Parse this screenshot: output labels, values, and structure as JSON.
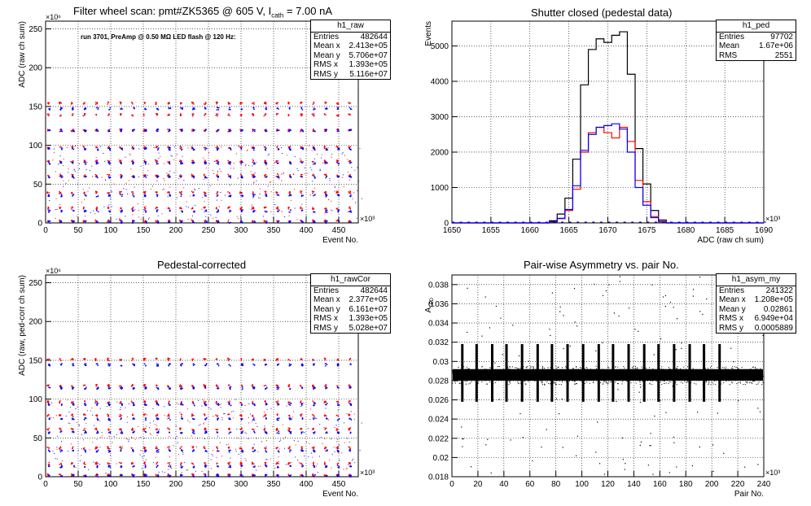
{
  "panels": [
    {
      "title_pre": "Filter wheel scan: pmt#ZK5365 @   605 V, I",
      "title_sub": "cath",
      "title_post": " = 7.00 nA",
      "subtitle": "run 3701, PreAmp @ 0.50 MΩ LED flash @  120 Hz:",
      "stats": {
        "name": "h1_raw",
        "rows": [
          [
            "Entries",
            "482644"
          ],
          [
            "Mean x",
            "2.413e+05"
          ],
          [
            "Mean y",
            "5.706e+07"
          ],
          [
            "RMS x",
            "1.393e+05"
          ],
          [
            "RMS y",
            "5.116e+07"
          ]
        ]
      }
    },
    {
      "title": "Shutter closed (pedestal data)",
      "stats": {
        "name": "h1_ped",
        "rows": [
          [
            "Entries",
            "97702"
          ],
          [
            "Mean",
            "1.67e+06"
          ],
          [
            "RMS",
            "2551"
          ]
        ]
      }
    },
    {
      "title": "Pedestal-corrected",
      "stats": {
        "name": "h1_rawCor",
        "rows": [
          [
            "Entries",
            "482644"
          ],
          [
            "Mean x",
            "2.377e+05"
          ],
          [
            "Mean y",
            "6.161e+07"
          ],
          [
            "RMS x",
            "1.393e+05"
          ],
          [
            "RMS y",
            "5.028e+07"
          ]
        ]
      }
    },
    {
      "title": "Pair-wise Asymmetry vs. pair No.",
      "stats": {
        "name": "h1_asym_my",
        "rows": [
          [
            "Entries",
            "241322"
          ],
          [
            "Mean x",
            "1.208e+05"
          ],
          [
            "Mean y",
            "0.02861"
          ],
          [
            "RMS x",
            "6.949e+04"
          ],
          [
            "RMS y",
            "0.0005889"
          ]
        ]
      }
    }
  ],
  "chart_data": [
    {
      "type": "scatter",
      "xlabel": "Event No.",
      "ylabel": "ADC (raw ch sum)",
      "x_multiplier": "×10³",
      "y_multiplier": "×10⁶",
      "xlim": [
        0,
        480
      ],
      "ylim": [
        0,
        260
      ],
      "xticks": [
        0,
        50,
        100,
        150,
        200,
        250,
        300,
        350,
        400,
        450
      ],
      "yticks": [
        0,
        50,
        100,
        150,
        200,
        250
      ],
      "series": [
        {
          "color": "#ff0000",
          "y_levels": [
            155,
            140,
            120,
            98,
            80,
            62,
            40,
            20,
            3
          ]
        },
        {
          "color": "#0000ff",
          "y_levels": [
            148,
            120,
            96,
            78,
            60,
            36,
            16,
            2
          ]
        }
      ],
      "column_period": 18.5
    },
    {
      "type": "line",
      "xlabel": "ADC (raw ch sum)",
      "ylabel": "Events",
      "x_multiplier": "×10³",
      "xlim": [
        1650,
        1690
      ],
      "ylim": [
        0,
        5700
      ],
      "xticks": [
        1650,
        1655,
        1660,
        1665,
        1670,
        1675,
        1680,
        1685,
        1690
      ],
      "yticks": [
        0,
        1000,
        2000,
        3000,
        4000,
        5000
      ],
      "x": [
        1663,
        1664,
        1665,
        1666,
        1667,
        1668,
        1669,
        1670,
        1671,
        1672,
        1673,
        1674,
        1675,
        1676,
        1677
      ],
      "series": [
        {
          "color": "#000000",
          "values": [
            60,
            250,
            700,
            1800,
            3900,
            4900,
            5200,
            5100,
            5300,
            5400,
            4200,
            2100,
            1100,
            350,
            80
          ]
        },
        {
          "color": "#ff0000",
          "values": [
            30,
            120,
            350,
            950,
            2000,
            2550,
            2700,
            2550,
            2400,
            2700,
            2300,
            1200,
            600,
            180,
            40
          ]
        },
        {
          "color": "#0000ff",
          "values": [
            30,
            130,
            380,
            1050,
            2050,
            2500,
            2700,
            2750,
            2800,
            2650,
            2000,
            1000,
            500,
            150,
            30
          ]
        }
      ]
    },
    {
      "type": "scatter",
      "xlabel": "Event No.",
      "ylabel": "ADC (raw, ped-corr ch sum)",
      "x_multiplier": "×10³",
      "y_multiplier": "×10⁶",
      "xlim": [
        0,
        480
      ],
      "ylim": [
        0,
        260
      ],
      "xticks": [
        0,
        50,
        100,
        150,
        200,
        250,
        300,
        350,
        400,
        450
      ],
      "yticks": [
        0,
        50,
        100,
        150,
        200,
        250
      ],
      "series": [
        {
          "color": "#ff0000",
          "y_levels": [
            152,
            118,
            97,
            80,
            62,
            38,
            18,
            3
          ]
        },
        {
          "color": "#0000ff",
          "y_levels": [
            145,
            115,
            94,
            75,
            58,
            34,
            14,
            2
          ]
        }
      ],
      "column_period": 18.5
    },
    {
      "type": "scatter",
      "xlabel": "Pair No.",
      "ylabel": "A_LED",
      "x_multiplier": "×10³",
      "xlim": [
        0,
        240
      ],
      "ylim": [
        0.018,
        0.039
      ],
      "xticks": [
        0,
        20,
        40,
        60,
        80,
        100,
        120,
        140,
        160,
        180,
        200,
        220,
        240
      ],
      "yticks": [
        0.018,
        0.02,
        0.022,
        0.024,
        0.026,
        0.028,
        0.03,
        0.032,
        0.034,
        0.036,
        0.038
      ],
      "band_center": 0.0286,
      "band_halfwidth": 0.0006,
      "spikes_x": [
        8,
        19,
        31,
        42,
        54,
        66,
        77,
        89,
        101,
        113,
        124,
        136,
        148,
        159,
        171,
        183,
        194,
        206
      ]
    }
  ]
}
